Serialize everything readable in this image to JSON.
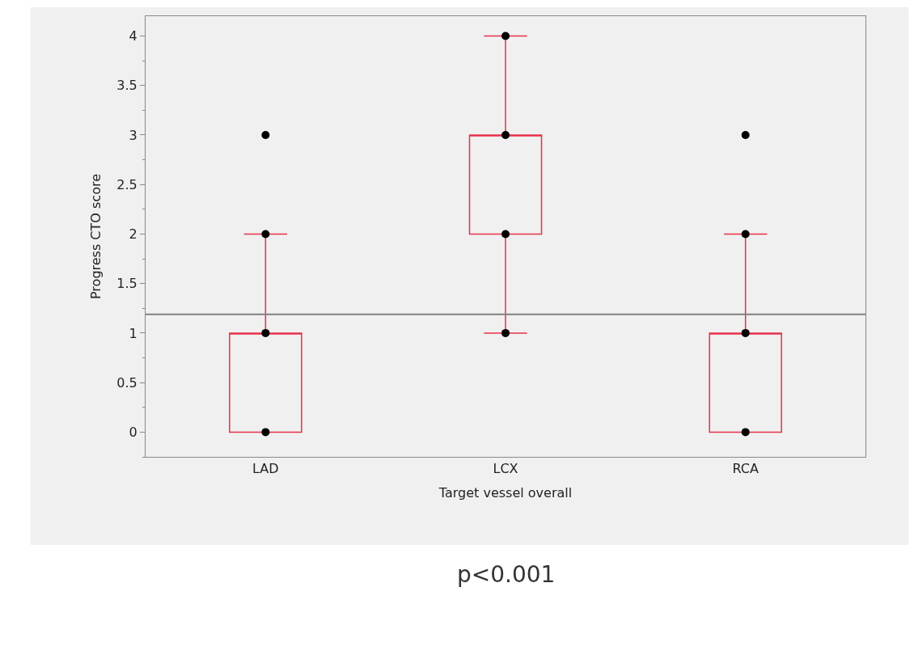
{
  "chart_data": {
    "type": "box",
    "xlabel": "Target vessel overall",
    "ylabel": "Progress CTO score",
    "categories": [
      "LAD",
      "LCX",
      "RCA"
    ],
    "boxes": [
      {
        "low": 0,
        "q1": 0,
        "median": 1,
        "q3": 1,
        "high": 2
      },
      {
        "low": 1,
        "q1": 2,
        "median": 3,
        "q3": 3,
        "high": 4
      },
      {
        "low": 0,
        "q1": 0,
        "median": 1,
        "q3": 1,
        "high": 2
      }
    ],
    "color": "#e8304a",
    "series": [
      {
        "type": "scatter",
        "color": "#000000",
        "x": [
          "LAD",
          "LAD",
          "LAD",
          "LAD",
          "LCX",
          "LCX",
          "LCX",
          "LCX",
          "RCA",
          "RCA",
          "RCA",
          "RCA"
        ],
        "values": [
          0,
          1,
          2,
          3,
          1,
          2,
          3,
          4,
          0,
          1,
          2,
          3
        ]
      }
    ],
    "marker": "circle",
    "ylim": [
      -0.25,
      4.2
    ],
    "yticks": [
      0,
      0.5,
      1,
      1.5,
      2,
      2.5,
      3,
      3.5,
      4
    ],
    "ref_lines": [
      {
        "axis": "y",
        "value": 1.19,
        "color": "#808080"
      }
    ],
    "grid": false,
    "annotations": [
      "p<0.001"
    ]
  }
}
